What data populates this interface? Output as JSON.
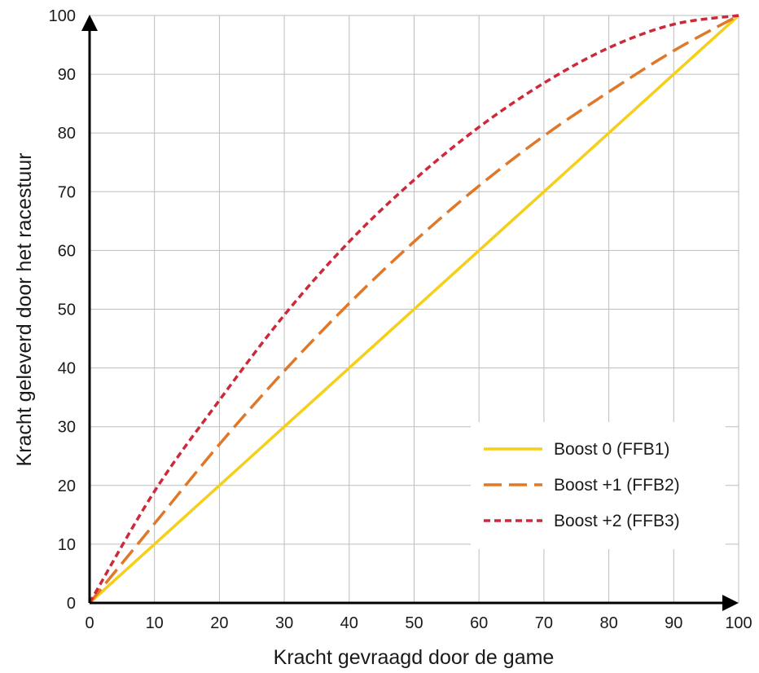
{
  "chart_data": {
    "type": "line",
    "title": "",
    "xlabel": "Kracht gevraagd door de game",
    "ylabel": "Kracht geleverd door het racestuur",
    "xlim": [
      0,
      100
    ],
    "ylim": [
      0,
      100
    ],
    "xticks": [
      "0",
      "10",
      "20",
      "30",
      "40",
      "50",
      "60",
      "70",
      "80",
      "90",
      "100"
    ],
    "yticks": [
      "0",
      "10",
      "20",
      "30",
      "40",
      "50",
      "60",
      "70",
      "80",
      "90",
      "100"
    ],
    "grid": true,
    "legend_position": "bottom-right",
    "x": [
      0,
      10,
      20,
      30,
      40,
      50,
      60,
      70,
      80,
      90,
      100
    ],
    "series": [
      {
        "name": "Boost 0 (FFB1)",
        "color": "#f5cf1a",
        "style": "solid",
        "values": [
          0,
          10,
          20,
          30,
          40,
          50,
          60,
          70,
          80,
          90,
          100
        ]
      },
      {
        "name": "Boost +1 (FFB2)",
        "color": "#e0782a",
        "style": "dashed",
        "values": [
          0,
          13.5,
          27,
          39.5,
          51,
          61.5,
          71,
          79.5,
          87,
          94,
          100
        ]
      },
      {
        "name": "Boost +2 (FFB3)",
        "color": "#cc2a3a",
        "style": "dotted",
        "values": [
          0,
          19,
          34.5,
          49,
          61.5,
          72,
          81,
          88.5,
          94.5,
          98.5,
          100
        ]
      }
    ]
  }
}
